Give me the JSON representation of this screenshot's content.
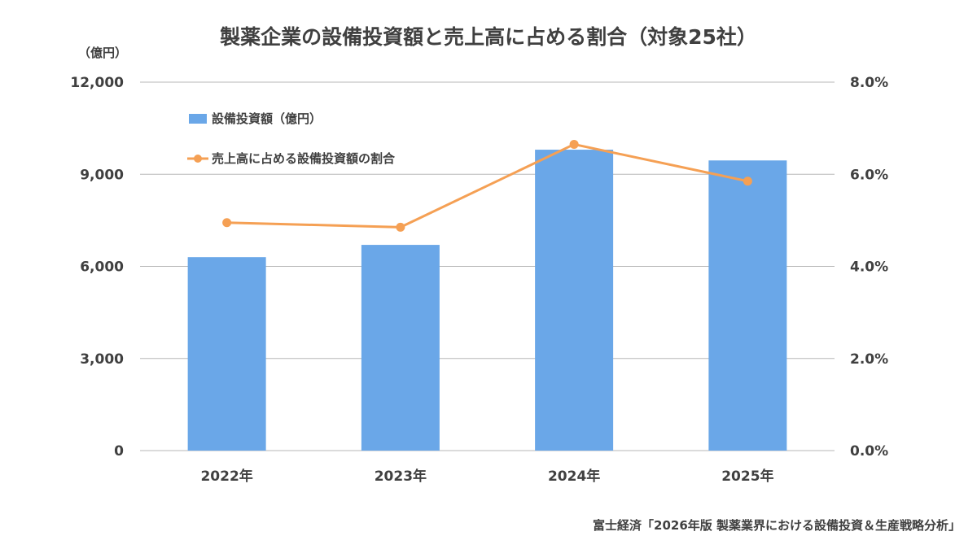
{
  "chart_data": {
    "type": "bar+line",
    "title": "製薬企業の設備投資額と売上高に占める割合（対象25社）",
    "left_axis_unit": "（億円）",
    "categories": [
      "2022年",
      "2023年",
      "2024年",
      "2025年"
    ],
    "y_left": {
      "min": 0,
      "max": 12000,
      "ticks": [
        0,
        3000,
        6000,
        9000,
        12000
      ],
      "tick_labels": [
        "0",
        "3,000",
        "6,000",
        "9,000",
        "12,000"
      ]
    },
    "y_right": {
      "min": 0,
      "max": 8,
      "ticks": [
        0,
        2,
        4,
        6,
        8
      ],
      "tick_labels": [
        "0.0%",
        "2.0%",
        "4.0%",
        "6.0%",
        "8.0%"
      ]
    },
    "series": [
      {
        "name": "設備投資額（億円）",
        "type": "bar",
        "axis": "left",
        "color": "#6aa7e8",
        "values": [
          6300,
          6700,
          9800,
          9450
        ]
      },
      {
        "name": "売上高に占める設備投資額の割合",
        "type": "line",
        "axis": "right",
        "color": "#f5a054",
        "values": [
          4.95,
          4.85,
          6.65,
          5.85
        ]
      }
    ],
    "grid": true,
    "legend_position": "top-left"
  },
  "source": "富士経済「2026年版 製薬業界における設備投資＆生産戦略分析」"
}
